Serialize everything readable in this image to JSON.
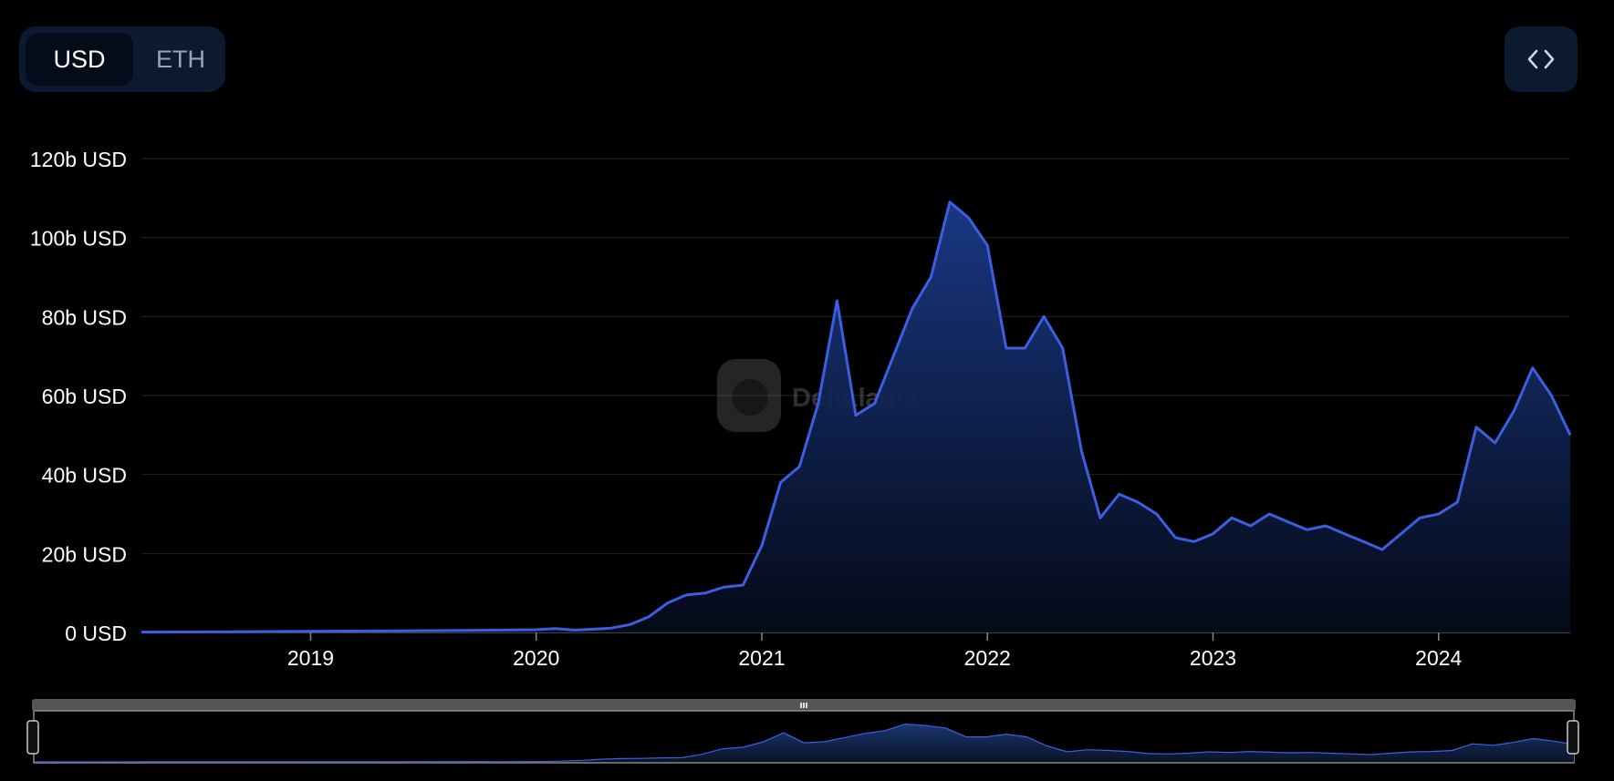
{
  "toggle": {
    "options": [
      "USD",
      "ETH"
    ],
    "selected": "USD"
  },
  "embed_button": {
    "icon": "code-embed-icon"
  },
  "watermark": {
    "text": "DefiLlama",
    "icon": "llama-logo-icon"
  },
  "colors": {
    "line": "#3b5fe0",
    "area_top": "#1a3a8a",
    "area_bottom": "#050b1a",
    "grid": "#232323",
    "toggle_bg": "#0c1a30",
    "navigator_bar": "#555555"
  },
  "chart_data": {
    "type": "area",
    "title": "",
    "xlabel": "",
    "ylabel": "",
    "x_ticks": [
      "2019",
      "2020",
      "2021",
      "2022",
      "2023",
      "2024"
    ],
    "y_ticks": [
      "0 USD",
      "20b USD",
      "40b USD",
      "60b USD",
      "80b USD",
      "100b USD",
      "120b USD"
    ],
    "ylim": [
      0,
      120
    ],
    "xlim": [
      "2018-04",
      "2024-08"
    ],
    "grid": true,
    "legend": "none",
    "series": [
      {
        "values_unit": "billion USD",
        "points": [
          [
            "2018-04",
            0.1
          ],
          [
            "2018-10",
            0.2
          ],
          [
            "2019-01",
            0.3
          ],
          [
            "2019-06",
            0.4
          ],
          [
            "2019-09",
            0.5
          ],
          [
            "2020-01",
            0.7
          ],
          [
            "2020-02",
            1.0
          ],
          [
            "2020-03",
            0.6
          ],
          [
            "2020-04",
            0.8
          ],
          [
            "2020-05",
            1.1
          ],
          [
            "2020-06",
            2.0
          ],
          [
            "2020-07",
            4.0
          ],
          [
            "2020-08",
            7.5
          ],
          [
            "2020-09",
            9.5
          ],
          [
            "2020-10",
            10.0
          ],
          [
            "2020-11",
            11.5
          ],
          [
            "2020-12",
            12.0
          ],
          [
            "2021-01",
            22.0
          ],
          [
            "2021-02",
            38.0
          ],
          [
            "2021-03",
            42.0
          ],
          [
            "2021-04",
            58.0
          ],
          [
            "2021-05",
            84.0
          ],
          [
            "2021-06",
            55.0
          ],
          [
            "2021-07",
            58.0
          ],
          [
            "2021-08",
            70.0
          ],
          [
            "2021-09",
            82.0
          ],
          [
            "2021-10",
            90.0
          ],
          [
            "2021-11",
            109.0
          ],
          [
            "2021-12",
            105.0
          ],
          [
            "2022-01",
            98.0
          ],
          [
            "2022-02",
            72.0
          ],
          [
            "2022-03",
            72.0
          ],
          [
            "2022-04",
            80.0
          ],
          [
            "2022-05",
            72.0
          ],
          [
            "2022-06",
            46.0
          ],
          [
            "2022-07",
            29.0
          ],
          [
            "2022-08",
            35.0
          ],
          [
            "2022-09",
            33.0
          ],
          [
            "2022-10",
            30.0
          ],
          [
            "2022-11",
            24.0
          ],
          [
            "2022-12",
            23.0
          ],
          [
            "2023-01",
            25.0
          ],
          [
            "2023-02",
            29.0
          ],
          [
            "2023-03",
            27.0
          ],
          [
            "2023-04",
            30.0
          ],
          [
            "2023-05",
            28.0
          ],
          [
            "2023-06",
            26.0
          ],
          [
            "2023-07",
            27.0
          ],
          [
            "2023-08",
            25.0
          ],
          [
            "2023-09",
            23.0
          ],
          [
            "2023-10",
            21.0
          ],
          [
            "2023-11",
            25.0
          ],
          [
            "2023-12",
            29.0
          ],
          [
            "2024-01",
            30.0
          ],
          [
            "2024-02",
            33.0
          ],
          [
            "2024-03",
            52.0
          ],
          [
            "2024-04",
            48.0
          ],
          [
            "2024-05",
            56.0
          ],
          [
            "2024-06",
            67.0
          ],
          [
            "2024-07",
            60.0
          ],
          [
            "2024-08",
            50.0
          ]
        ]
      }
    ]
  }
}
